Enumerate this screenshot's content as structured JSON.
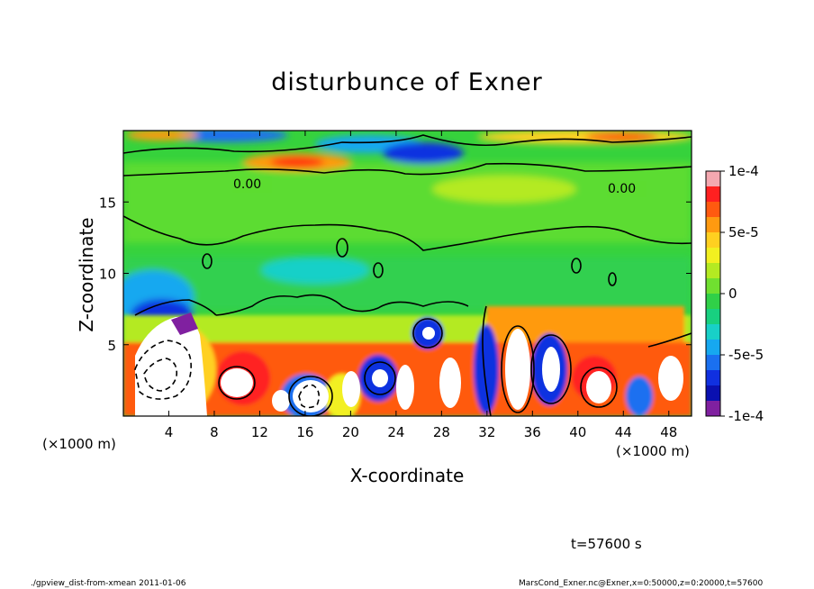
{
  "chart_data": {
    "type": "heatmap",
    "title": "disturbunce of Exner",
    "xlabel": "X-coordinate",
    "ylabel": "Z-coordinate",
    "x_unit": "(×1000 m)",
    "xlim": [
      0,
      50
    ],
    "ylim": [
      0,
      20
    ],
    "x_ticks": [
      4,
      8,
      12,
      16,
      20,
      24,
      28,
      32,
      36,
      40,
      44,
      48
    ],
    "y_ticks": [
      5,
      10,
      15
    ],
    "colorbar": {
      "min": -0.0001,
      "max": 0.0001,
      "tick_labels": [
        "1e-4",
        "5e-5",
        "0",
        "-5e-5",
        "-1e-4"
      ],
      "tick_values": [
        0.0001,
        5e-05,
        0,
        -5e-05,
        -0.0001
      ],
      "colors": [
        "#f4a8b0",
        "#ff2020",
        "#ff5a10",
        "#ff9a10",
        "#ffd020",
        "#f2f020",
        "#b4ea22",
        "#70e030",
        "#30d048",
        "#18d080",
        "#18d0c8",
        "#16a8f0",
        "#1a70f0",
        "#1030e0",
        "#0a10b0",
        "#8020a0"
      ]
    },
    "contour_labels": [
      "0.00",
      "0.00"
    ],
    "regions": [
      {
        "x": 25,
        "z": 15,
        "value": 1e-05
      },
      {
        "x": 14,
        "z": 19.3,
        "value": 9e-05
      },
      {
        "x": 24,
        "z": 18.8,
        "value": -9e-05
      },
      {
        "x": 40,
        "z": 19.3,
        "value": 7e-05
      },
      {
        "x": 2,
        "z": 6,
        "value": -9e-05
      },
      {
        "x": 27,
        "z": 5.5,
        "value": -8e-05
      },
      {
        "x": 22,
        "z": 3,
        "value": -8e-05
      },
      {
        "x": 32,
        "z": 3,
        "value": -9e-05
      },
      {
        "x": 38,
        "z": 2,
        "value": -0.0001
      },
      {
        "x": 44,
        "z": 2,
        "value": -9e-05
      }
    ]
  },
  "annotations": {
    "time": "t=57600 s",
    "footer_left": "./gpview_dist-from-xmean  2011-01-06",
    "footer_right": "MarsCond_Exner.nc@Exner,x=0:50000,z=0:20000,t=57600"
  }
}
